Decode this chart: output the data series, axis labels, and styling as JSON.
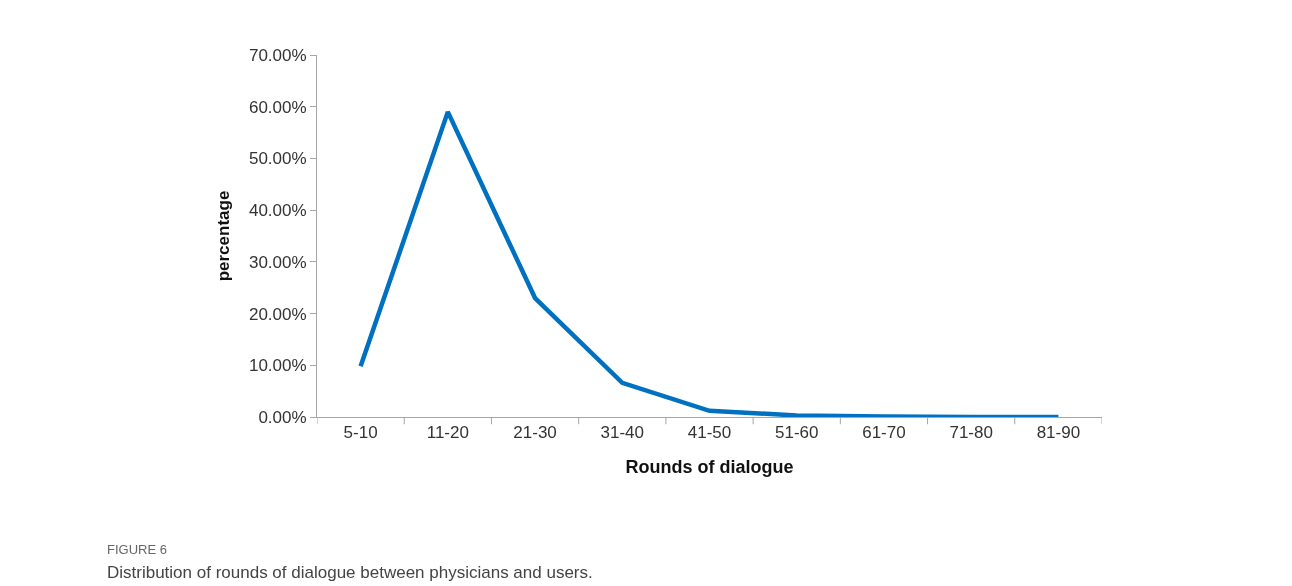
{
  "chart_data": {
    "type": "line",
    "xlabel": "Rounds of dialogue",
    "ylabel": "percentage",
    "categories": [
      "5-10",
      "11-20",
      "21-30",
      "31-40",
      "41-50",
      "51-60",
      "61-70",
      "71-80",
      "81-90"
    ],
    "series": [
      {
        "color": "#0070c0",
        "values": [
          9.8,
          59,
          23,
          6.6,
          1.2,
          0.3,
          0.1,
          0,
          0
        ]
      }
    ],
    "ylim": [
      0,
      70
    ],
    "yticks": [
      {
        "value": 0,
        "label": "0.00%"
      },
      {
        "value": 10,
        "label": "10.00%"
      },
      {
        "value": 20,
        "label": "20.00%"
      },
      {
        "value": 30,
        "label": "30.00%"
      },
      {
        "value": 40,
        "label": "40.00%"
      },
      {
        "value": 50,
        "label": "50.00%"
      },
      {
        "value": 60,
        "label": "60.00%"
      },
      {
        "value": 70,
        "label": "70.00%"
      }
    ],
    "marker": "none",
    "line_style": "solid",
    "annotations": [
      "FIGURE 6",
      "Distribution of rounds of dialogue between physicians and users."
    ]
  }
}
